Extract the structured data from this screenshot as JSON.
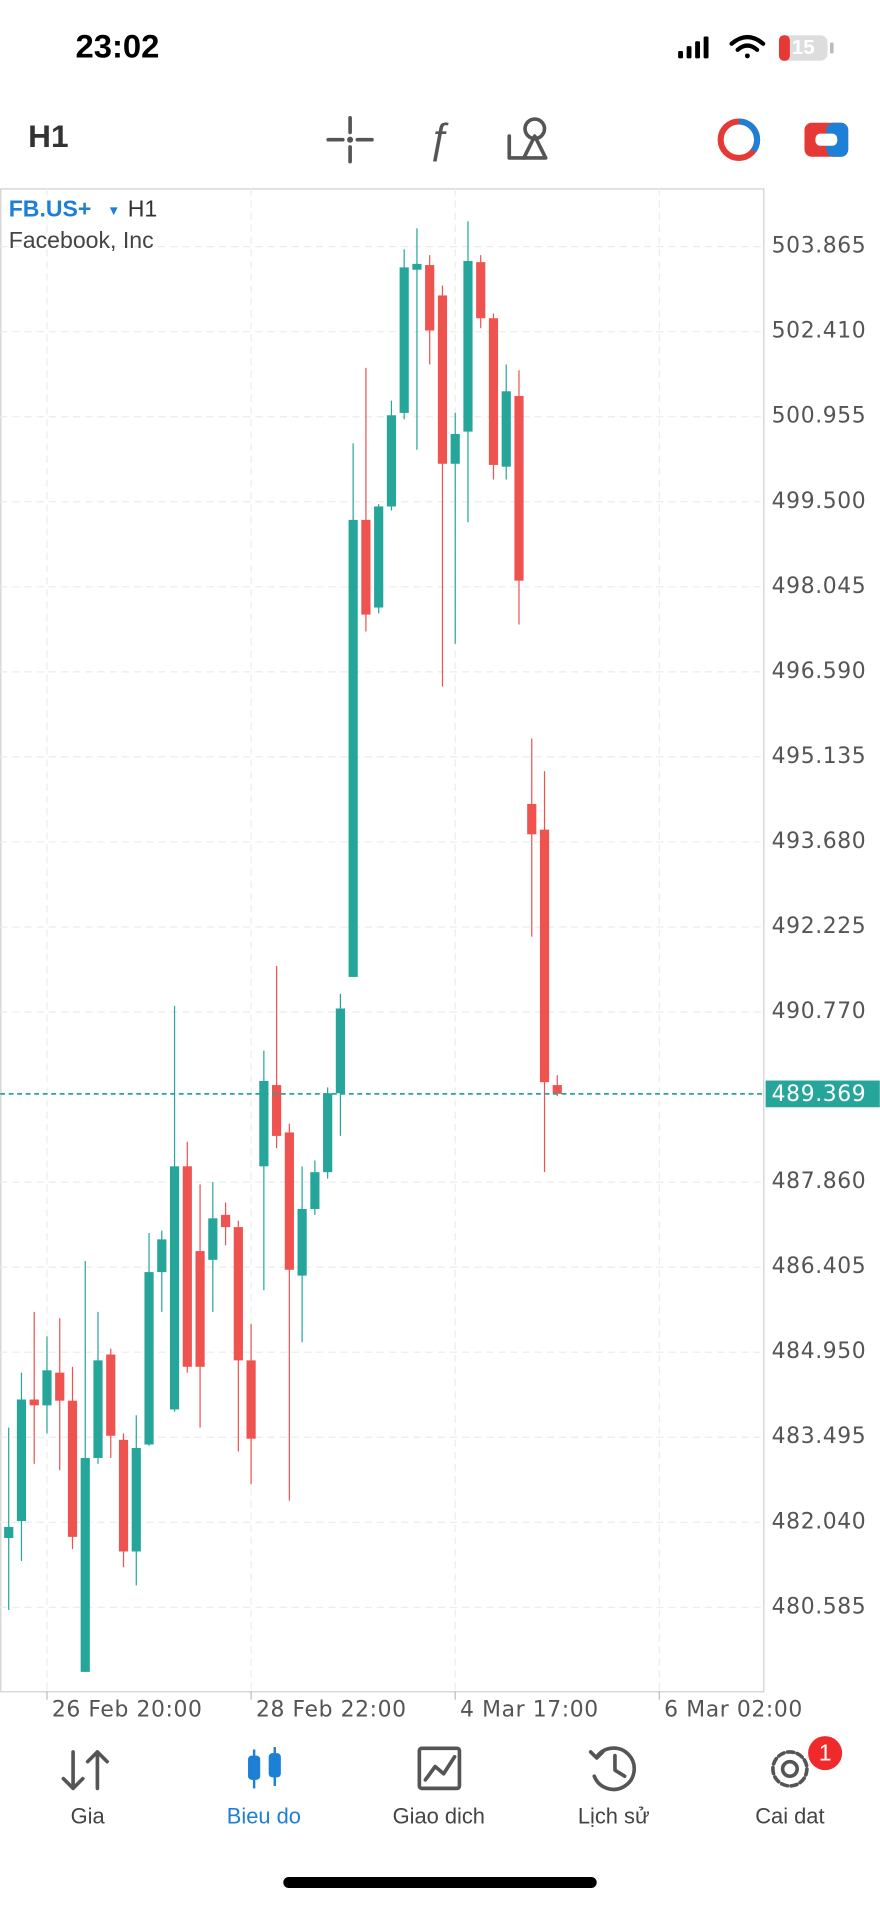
{
  "status_bar": {
    "time": "23:02",
    "battery": 15
  },
  "toolbar": {
    "timeframe": "H1"
  },
  "chart_data": {
    "type": "candlestick",
    "symbol": "FB.US+",
    "timeframe": "H1",
    "subtitle": "Facebook, Inc",
    "open": [
      481.77,
      482.06,
      484.14,
      484.04,
      484.6,
      484.12,
      479.48,
      483.14,
      484.91,
      483.45,
      481.54,
      483.37,
      486.32,
      483.97,
      488.13,
      486.68,
      486.53,
      487.3,
      487.09,
      484.81,
      488.13,
      489.52,
      488.71,
      486.26,
      487.4,
      488.03,
      489.38,
      491.37,
      499.19,
      497.69,
      499.42,
      501.02,
      503.47,
      503.55,
      503.03,
      500.15,
      500.7,
      503.6,
      502.64,
      500.1,
      501.31,
      494.33,
      493.89,
      489.52
    ],
    "high": [
      483.66,
      484.6,
      485.64,
      485.22,
      485.53,
      484.7,
      486.51,
      485.64,
      485.01,
      483.56,
      483.87,
      486.99,
      487.03,
      490.87,
      488.55,
      487.82,
      487.86,
      487.51,
      487.2,
      485.43,
      490.11,
      491.56,
      488.86,
      488.13,
      488.23,
      489.48,
      491.08,
      500.5,
      501.79,
      499.46,
      501.23,
      503.82,
      504.18,
      503.72,
      503.2,
      501.02,
      504.3,
      503.72,
      502.72,
      501.85,
      501.75,
      495.45,
      494.89,
      489.69
    ],
    "low": [
      480.54,
      481.38,
      483.04,
      483.56,
      482.93,
      481.58,
      479.48,
      483.04,
      483.14,
      481.27,
      480.96,
      483.35,
      485.64,
      483.93,
      484.6,
      483.66,
      485.64,
      486.78,
      483.25,
      482.69,
      486.01,
      488.44,
      482.41,
      485.12,
      487.3,
      487.92,
      488.65,
      491.37,
      497.28,
      497.59,
      499.35,
      500.91,
      500.39,
      501.85,
      496.34,
      497.07,
      499.15,
      502.47,
      499.88,
      499.88,
      497.4,
      492.06,
      488.03,
      489.33
    ],
    "close": [
      481.96,
      484.14,
      484.04,
      484.64,
      484.12,
      481.79,
      483.14,
      484.81,
      483.52,
      481.54,
      483.31,
      486.32,
      486.88,
      488.13,
      484.7,
      484.7,
      487.24,
      487.09,
      484.81,
      483.47,
      489.59,
      488.65,
      486.36,
      487.4,
      488.03,
      489.38,
      490.83,
      499.19,
      497.57,
      499.42,
      500.98,
      503.51,
      503.57,
      502.43,
      500.15,
      500.66,
      503.62,
      502.64,
      500.13,
      501.39,
      498.15,
      493.81,
      489.57,
      489.37
    ],
    "up_color": "#26a69a",
    "down_color": "#ef5350",
    "current_price": 489.369,
    "ylim": [
      479.15,
      504.863
    ],
    "yticks": [
      503.865,
      {
        "value": 502.41,
        "label": "502.410"
      },
      500.955,
      {
        "value": 499.5,
        "label": "499.500"
      },
      498.045,
      {
        "value": 496.59,
        "label": "496.590"
      },
      495.135,
      {
        "value": 493.68,
        "label": "493.680"
      },
      492.225,
      {
        "value": 490.77,
        "label": "490.770"
      },
      {
        "value": 487.86,
        "label": "487.860"
      },
      486.405,
      {
        "value": 484.95,
        "label": "484.950"
      },
      483.495,
      {
        "value": 482.04,
        "label": "482.040"
      },
      480.585
    ],
    "xlim": [
      -0.667,
      59.14
    ],
    "xticks": [
      {
        "value": 3,
        "label": "26 Feb 20:00"
      },
      {
        "value": 19,
        "label": "28 Feb 22:00"
      },
      {
        "value": 35,
        "label": "4 Mar 17:00"
      },
      {
        "value": 51,
        "label": "6 Mar 02:00"
      }
    ],
    "grid": true
  },
  "nav": {
    "items": [
      "Gia",
      "Bieu do",
      "Giao dich",
      "Lịch sử",
      "Cai dat"
    ],
    "active": 1,
    "badge": 1
  }
}
